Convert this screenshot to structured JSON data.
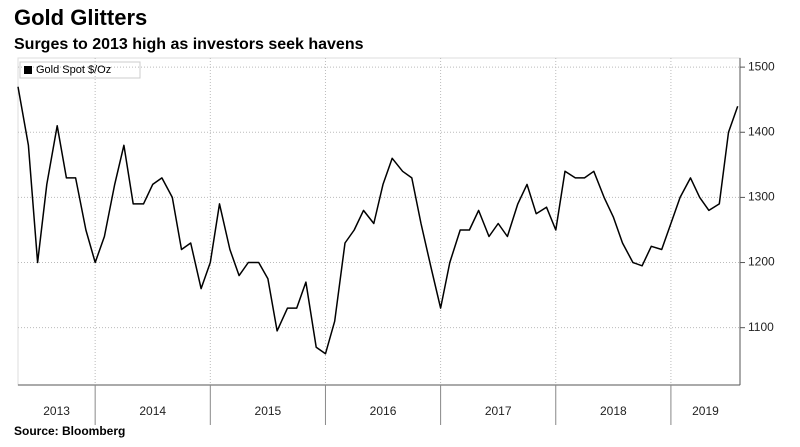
{
  "chart_data": {
    "type": "line",
    "title": "Gold Glitters",
    "subtitle": "Surges to 2013 high as investors seek havens",
    "source": "Source: Bloomberg",
    "x": [
      2013.33,
      2013.42,
      2013.5,
      2013.58,
      2013.67,
      2013.75,
      2013.83,
      2013.92,
      2014.0,
      2014.08,
      2014.17,
      2014.25,
      2014.33,
      2014.42,
      2014.5,
      2014.58,
      2014.67,
      2014.75,
      2014.83,
      2014.92,
      2015.0,
      2015.08,
      2015.17,
      2015.25,
      2015.33,
      2015.42,
      2015.5,
      2015.58,
      2015.67,
      2015.75,
      2015.83,
      2015.92,
      2016.0,
      2016.08,
      2016.17,
      2016.25,
      2016.33,
      2016.42,
      2016.5,
      2016.58,
      2016.67,
      2016.75,
      2016.83,
      2016.92,
      2017.0,
      2017.08,
      2017.17,
      2017.25,
      2017.33,
      2017.42,
      2017.5,
      2017.58,
      2017.67,
      2017.75,
      2017.83,
      2017.92,
      2018.0,
      2018.08,
      2018.17,
      2018.25,
      2018.33,
      2018.42,
      2018.5,
      2018.58,
      2018.67,
      2018.75,
      2018.83,
      2018.92,
      2019.0,
      2019.08,
      2019.17,
      2019.25,
      2019.33,
      2019.42,
      2019.5,
      2019.58
    ],
    "series": [
      {
        "name": "Gold Spot $/Oz",
        "color": "#000000",
        "values": [
          1470,
          1380,
          1200,
          1320,
          1410,
          1330,
          1330,
          1250,
          1200,
          1240,
          1320,
          1380,
          1290,
          1290,
          1320,
          1330,
          1300,
          1220,
          1230,
          1160,
          1200,
          1290,
          1220,
          1180,
          1200,
          1200,
          1175,
          1095,
          1130,
          1130,
          1170,
          1070,
          1060,
          1110,
          1230,
          1250,
          1280,
          1260,
          1320,
          1360,
          1340,
          1330,
          1260,
          1190,
          1130,
          1200,
          1250,
          1250,
          1280,
          1240,
          1260,
          1240,
          1290,
          1320,
          1275,
          1285,
          1250,
          1340,
          1330,
          1330,
          1340,
          1300,
          1270,
          1230,
          1200,
          1195,
          1225,
          1220,
          1260,
          1300,
          1330,
          1300,
          1280,
          1290,
          1400,
          1440
        ]
      }
    ],
    "xlim": [
      2013.33,
      2019.6
    ],
    "xticks": [
      2014,
      2015,
      2016,
      2017,
      2018,
      2019
    ],
    "x_labels": [
      "2013",
      "2014",
      "2015",
      "2016",
      "2017",
      "2018",
      "2019"
    ],
    "ylim": [
      1012,
      1514
    ],
    "yticks": [
      1100,
      1200,
      1300,
      1400,
      1500
    ],
    "grid": true
  }
}
